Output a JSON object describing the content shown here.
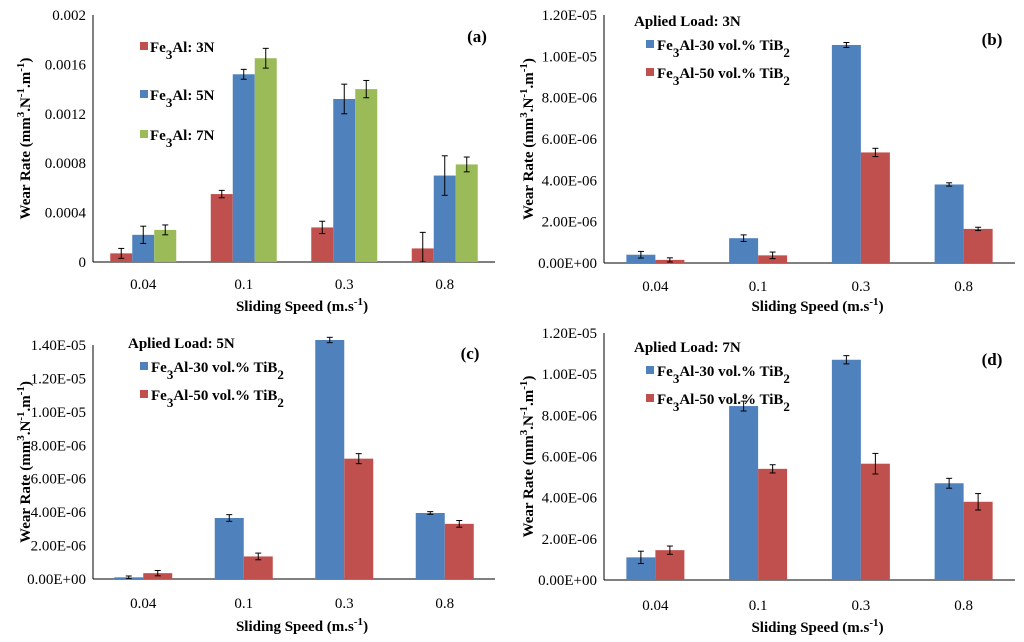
{
  "colors": {
    "red": "#c0504d",
    "blue": "#4f81bd",
    "green": "#9bbb59"
  },
  "chart_data": [
    {
      "panel": "(a)",
      "type": "bar",
      "categories": [
        "0.04",
        "0.1",
        "0.3",
        "0.8"
      ],
      "xlabel": "Sliding Speed (m.s-1)",
      "ylabel": "Wear Rate (mm3.N-1.m-1)",
      "ylim": [
        0,
        0.002
      ],
      "yticks": [
        "0",
        "0.0004",
        "0.0008",
        "0.0012",
        "0.0016",
        "0.002"
      ],
      "ytick_values": [
        0,
        0.0004,
        0.0008,
        0.0012,
        0.0016,
        0.002
      ],
      "load": "",
      "legend_style": "left-stack",
      "series": [
        {
          "name": "Fe3Al: 3N",
          "parts": [
            "Fe",
            "3",
            "Al: 3N"
          ],
          "color": "#c0504d",
          "values": [
            7e-05,
            0.00055,
            0.00028,
            0.00011
          ],
          "errors": [
            4e-05,
            3e-05,
            5e-05,
            0.00013
          ]
        },
        {
          "name": "Fe3Al: 5N",
          "parts": [
            "Fe",
            "3",
            "Al: 5N"
          ],
          "color": "#4f81bd",
          "values": [
            0.00022,
            0.00152,
            0.00132,
            0.0007
          ],
          "errors": [
            7e-05,
            4e-05,
            0.00012,
            0.00016
          ]
        },
        {
          "name": "Fe3Al: 7N",
          "parts": [
            "Fe",
            "3",
            "Al: 7N"
          ],
          "color": "#9bbb59",
          "values": [
            0.00026,
            0.00165,
            0.0014,
            0.00079
          ],
          "errors": [
            4e-05,
            8e-05,
            7e-05,
            6e-05
          ]
        }
      ]
    },
    {
      "panel": "(b)",
      "type": "bar",
      "categories": [
        "0.04",
        "0.1",
        "0.3",
        "0.8"
      ],
      "xlabel": "Sliding Speed (m.s-1)",
      "ylabel": "Wear Rate (mm3.N-1.m-1)",
      "ylim": [
        0,
        1.2e-05
      ],
      "yticks": [
        "0.00E+00",
        "2.00E-06",
        "4.00E-06",
        "6.00E-06",
        "8.00E-06",
        "1.00E-05",
        "1.20E-05"
      ],
      "ytick_values": [
        0,
        2e-06,
        4e-06,
        6e-06,
        8e-06,
        1e-05,
        1.2e-05
      ],
      "load": "Aplied Load: 3N",
      "legend_style": "top",
      "series": [
        {
          "name": "Fe3Al-30 vol.% TiB2",
          "parts": [
            "Fe",
            "3",
            "Al-30 vol.% TiB",
            "2"
          ],
          "color": "#4f81bd",
          "values": [
            4e-07,
            1.2e-06,
            1.055e-05,
            3.8e-06
          ],
          "errors": [
            1.6e-07,
            1.6e-07,
            1.2e-07,
            8e-08
          ]
        },
        {
          "name": "Fe3Al-50 vol.% TiB2",
          "parts": [
            "Fe",
            "3",
            "Al-50 vol.% TiB",
            "2"
          ],
          "color": "#c0504d",
          "values": [
            1.5e-07,
            3.7e-07,
            5.35e-06,
            1.65e-06
          ],
          "errors": [
            1e-07,
            1.6e-07,
            2e-07,
            8e-08
          ]
        }
      ]
    },
    {
      "panel": "(c)",
      "type": "bar",
      "categories": [
        "0.04",
        "0.1",
        "0.3",
        "0.8"
      ],
      "xlabel": "Sliding Speed (m.s-1)",
      "ylabel": "Wear Rate (mm3.N-1.m-1)",
      "ylim": [
        0,
        1.4e-05
      ],
      "yticks": [
        "0.00E+00",
        "2.00E-06",
        "4.00E-06",
        "6.00E-06",
        "8.00E-06",
        "1.00E-05",
        "1.20E-05",
        "1.40E-05"
      ],
      "ytick_values": [
        0,
        2e-06,
        4e-06,
        6e-06,
        8e-06,
        1e-05,
        1.2e-05,
        1.4e-05
      ],
      "load": "Aplied Load: 5N",
      "legend_style": "top",
      "series": [
        {
          "name": "Fe3Al-30 vol.% TiB2",
          "parts": [
            "Fe",
            "3",
            "Al-30 vol.% TiB",
            "2"
          ],
          "color": "#4f81bd",
          "values": [
            1e-07,
            3.65e-06,
            1.43e-05,
            3.95e-06
          ],
          "errors": [
            8e-08,
            2e-07,
            1.6e-07,
            8e-08
          ]
        },
        {
          "name": "Fe3Al-50 vol.% TiB2",
          "parts": [
            "Fe",
            "3",
            "Al-50 vol.% TiB",
            "2"
          ],
          "color": "#c0504d",
          "values": [
            3.5e-07,
            1.35e-06,
            7.2e-06,
            3.3e-06
          ],
          "errors": [
            1.6e-07,
            2e-07,
            3e-07,
            2e-07
          ]
        }
      ]
    },
    {
      "panel": "(d)",
      "type": "bar",
      "categories": [
        "0.04",
        "0.1",
        "0.3",
        "0.8"
      ],
      "xlabel": "Sliding Speed (m.s-1)",
      "ylabel": "Wear Rate (mm3.N-1.m-1)",
      "ylim": [
        0,
        1.2e-05
      ],
      "yticks": [
        "0.00E+00",
        "2.00E-06",
        "4.00E-06",
        "6.00E-06",
        "8.00E-06",
        "1.00E-05",
        "1.20E-05"
      ],
      "ytick_values": [
        0,
        2e-06,
        4e-06,
        6e-06,
        8e-06,
        1e-05,
        1.2e-05
      ],
      "load": "Aplied Load: 7N",
      "legend_style": "top",
      "series": [
        {
          "name": "Fe3Al-30 vol.% TiB2",
          "parts": [
            "Fe",
            "3",
            "Al-30 vol.% TiB",
            "2"
          ],
          "color": "#4f81bd",
          "values": [
            1.1e-06,
            8.45e-06,
            1.07e-05,
            4.7e-06
          ],
          "errors": [
            3e-07,
            2.4e-07,
            2e-07,
            2.4e-07
          ]
        },
        {
          "name": "Fe3Al-50 vol.% TiB2",
          "parts": [
            "Fe",
            "3",
            "Al-50 vol.% TiB",
            "2"
          ],
          "color": "#c0504d",
          "values": [
            1.45e-06,
            5.4e-06,
            5.65e-06,
            3.8e-06
          ],
          "errors": [
            2e-07,
            2e-07,
            5e-07,
            4e-07
          ]
        }
      ]
    }
  ]
}
